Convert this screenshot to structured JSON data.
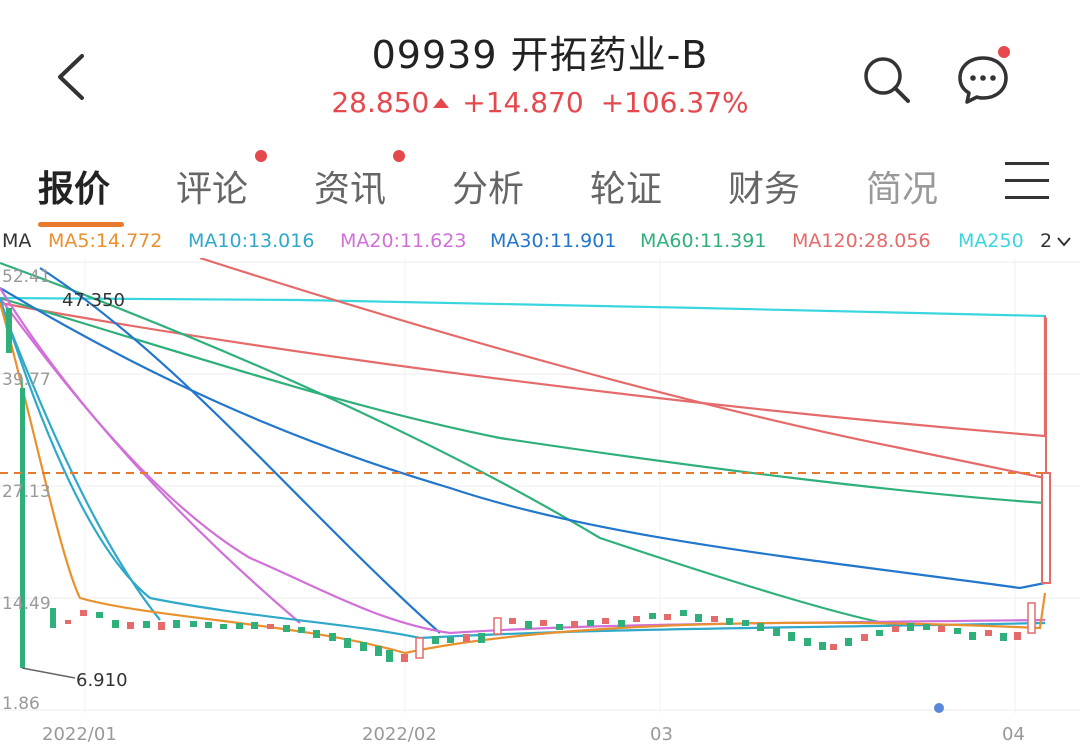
{
  "header": {
    "title": "09939  开拓药业-B",
    "price": "28.850",
    "change": "+14.870",
    "change_pct": "+106.37%",
    "up_color": "#e5484d"
  },
  "tabs": [
    {
      "label": "报价",
      "active": true
    },
    {
      "label": "评论",
      "badge": true
    },
    {
      "label": "资讯",
      "badge": true
    },
    {
      "label": "分析"
    },
    {
      "label": "轮证"
    },
    {
      "label": "财务"
    },
    {
      "label": "简况"
    }
  ],
  "ma_bar": {
    "prefix": "MA",
    "items": [
      {
        "label": "MA5:14.772",
        "color": "#e8912e"
      },
      {
        "label": "MA10:13.016",
        "color": "#2fa8c9"
      },
      {
        "label": "MA20:11.623",
        "color": "#d070d8"
      },
      {
        "label": "MA30:11.901",
        "color": "#2277cc"
      },
      {
        "label": "MA60:11.391",
        "color": "#2fb07a"
      },
      {
        "label": "MA120:28.056",
        "color": "#e56a6a"
      },
      {
        "label": "MA250",
        "color": "#3ad6e0"
      }
    ],
    "more": "2"
  },
  "chart_data": {
    "type": "candlestick",
    "y_ticks": [
      "52.41",
      "39.77",
      "27.13",
      "14.49",
      "1.86"
    ],
    "x_ticks": [
      "2022/01",
      "2022/02",
      "03",
      "04"
    ],
    "annotations": {
      "high": "47.350",
      "low": "6.910"
    },
    "current_price_line": 28.85,
    "ylim": [
      1.86,
      52.41
    ]
  }
}
